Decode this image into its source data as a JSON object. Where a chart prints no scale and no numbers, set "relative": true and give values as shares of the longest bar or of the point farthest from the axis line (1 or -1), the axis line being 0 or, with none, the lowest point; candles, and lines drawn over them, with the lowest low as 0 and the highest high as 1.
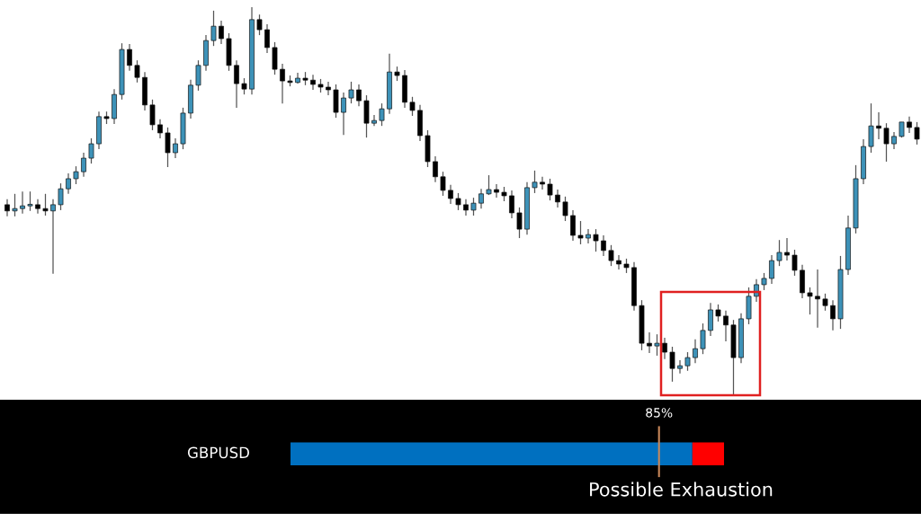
{
  "chart_data": [
    {
      "type": "candlestick",
      "relative": true,
      "categories": [
        null,
        null,
        null,
        null,
        null,
        null,
        null,
        null,
        null,
        null,
        null,
        null,
        null,
        null,
        null,
        null,
        null,
        null,
        null,
        null,
        null,
        null,
        null,
        null,
        null,
        null,
        null,
        null,
        null,
        null,
        null,
        null,
        null,
        null,
        null,
        null,
        null,
        null,
        null,
        null,
        null,
        null,
        null,
        null,
        null,
        null,
        null,
        null,
        null,
        null,
        null,
        null,
        null,
        null,
        null,
        null,
        null,
        null,
        null,
        null,
        null,
        null,
        null,
        null,
        null,
        null,
        null,
        null,
        null,
        null,
        null,
        null,
        null,
        null,
        null,
        null,
        null,
        null,
        null,
        null,
        null,
        null,
        null,
        null,
        null,
        null,
        null,
        null,
        null,
        null,
        null,
        null,
        null,
        null,
        null,
        null,
        null,
        null,
        null,
        null,
        null,
        null,
        null,
        null,
        null,
        null,
        null,
        null,
        null,
        null,
        null,
        null,
        null,
        null,
        null,
        null,
        null,
        null,
        null,
        null
      ],
      "ohlc": [
        [
          0.491,
          0.505,
          0.461,
          0.475
        ],
        [
          0.475,
          0.519,
          0.461,
          0.481
        ],
        [
          0.481,
          0.525,
          0.468,
          0.488
        ],
        [
          0.488,
          0.525,
          0.475,
          0.491
        ],
        [
          0.491,
          0.505,
          0.468,
          0.481
        ],
        [
          0.481,
          0.519,
          0.463,
          0.475
        ],
        [
          0.475,
          0.505,
          0.313,
          0.491
        ],
        [
          0.491,
          0.546,
          0.477,
          0.532
        ],
        [
          0.532,
          0.572,
          0.519,
          0.558
        ],
        [
          0.558,
          0.59,
          0.544,
          0.576
        ],
        [
          0.576,
          0.625,
          0.563,
          0.611
        ],
        [
          0.611,
          0.662,
          0.597,
          0.648
        ],
        [
          0.648,
          0.731,
          0.634,
          0.718
        ],
        [
          0.718,
          0.731,
          0.699,
          0.713
        ],
        [
          0.713,
          0.789,
          0.699,
          0.775
        ],
        [
          0.775,
          0.907,
          0.762,
          0.891
        ],
        [
          0.891,
          0.905,
          0.836,
          0.85
        ],
        [
          0.85,
          0.863,
          0.806,
          0.819
        ],
        [
          0.819,
          0.833,
          0.734,
          0.748
        ],
        [
          0.748,
          0.762,
          0.683,
          0.697
        ],
        [
          0.697,
          0.711,
          0.662,
          0.676
        ],
        [
          0.676,
          0.69,
          0.588,
          0.625
        ],
        [
          0.625,
          0.662,
          0.611,
          0.648
        ],
        [
          0.648,
          0.741,
          0.634,
          0.727
        ],
        [
          0.727,
          0.813,
          0.713,
          0.799
        ],
        [
          0.799,
          0.863,
          0.785,
          0.85
        ],
        [
          0.85,
          0.928,
          0.836,
          0.914
        ],
        [
          0.914,
          0.991,
          0.9,
          0.951
        ],
        [
          0.951,
          0.965,
          0.905,
          0.919
        ],
        [
          0.919,
          0.933,
          0.836,
          0.85
        ],
        [
          0.85,
          0.863,
          0.741,
          0.803
        ],
        [
          0.803,
          0.817,
          0.775,
          0.789
        ],
        [
          0.789,
          1.0,
          0.775,
          0.968
        ],
        [
          0.968,
          0.981,
          0.928,
          0.942
        ],
        [
          0.942,
          0.956,
          0.882,
          0.896
        ],
        [
          0.896,
          0.91,
          0.826,
          0.84
        ],
        [
          0.84,
          0.854,
          0.752,
          0.81
        ],
        [
          0.81,
          0.824,
          0.796,
          0.806
        ],
        [
          0.806,
          0.831,
          0.803,
          0.817
        ],
        [
          0.817,
          0.833,
          0.799,
          0.812
        ],
        [
          0.812,
          0.826,
          0.787,
          0.801
        ],
        [
          0.801,
          0.815,
          0.78,
          0.794
        ],
        [
          0.794,
          0.808,
          0.773,
          0.787
        ],
        [
          0.787,
          0.801,
          0.715,
          0.729
        ],
        [
          0.729,
          0.78,
          0.671,
          0.766
        ],
        [
          0.766,
          0.808,
          0.752,
          0.787
        ],
        [
          0.787,
          0.801,
          0.745,
          0.759
        ],
        [
          0.759,
          0.773,
          0.664,
          0.701
        ],
        [
          0.701,
          0.722,
          0.694,
          0.708
        ],
        [
          0.708,
          0.752,
          0.694,
          0.738
        ],
        [
          0.738,
          0.88,
          0.725,
          0.833
        ],
        [
          0.833,
          0.847,
          0.81,
          0.824
        ],
        [
          0.824,
          0.838,
          0.741,
          0.755
        ],
        [
          0.755,
          0.769,
          0.72,
          0.734
        ],
        [
          0.734,
          0.748,
          0.655,
          0.669
        ],
        [
          0.669,
          0.683,
          0.588,
          0.602
        ],
        [
          0.602,
          0.616,
          0.549,
          0.563
        ],
        [
          0.563,
          0.576,
          0.514,
          0.528
        ],
        [
          0.528,
          0.542,
          0.493,
          0.507
        ],
        [
          0.507,
          0.521,
          0.477,
          0.491
        ],
        [
          0.491,
          0.505,
          0.463,
          0.477
        ],
        [
          0.477,
          0.509,
          0.463,
          0.495
        ],
        [
          0.495,
          0.532,
          0.481,
          0.519
        ],
        [
          0.519,
          0.567,
          0.516,
          0.53
        ],
        [
          0.53,
          0.544,
          0.509,
          0.523
        ],
        [
          0.523,
          0.537,
          0.5,
          0.514
        ],
        [
          0.514,
          0.528,
          0.456,
          0.47
        ],
        [
          0.47,
          0.484,
          0.405,
          0.428
        ],
        [
          0.428,
          0.549,
          0.414,
          0.535
        ],
        [
          0.535,
          0.579,
          0.521,
          0.549
        ],
        [
          0.549,
          0.563,
          0.53,
          0.544
        ],
        [
          0.544,
          0.558,
          0.502,
          0.516
        ],
        [
          0.516,
          0.53,
          0.484,
          0.498
        ],
        [
          0.498,
          0.512,
          0.449,
          0.463
        ],
        [
          0.463,
          0.477,
          0.398,
          0.412
        ],
        [
          0.412,
          0.449,
          0.389,
          0.405
        ],
        [
          0.405,
          0.428,
          0.391,
          0.414
        ],
        [
          0.414,
          0.428,
          0.37,
          0.398
        ],
        [
          0.398,
          0.412,
          0.359,
          0.373
        ],
        [
          0.373,
          0.387,
          0.333,
          0.347
        ],
        [
          0.347,
          0.361,
          0.324,
          0.338
        ],
        [
          0.338,
          0.352,
          0.315,
          0.329
        ],
        [
          0.329,
          0.343,
          0.218,
          0.231
        ],
        [
          0.231,
          0.245,
          0.116,
          0.134
        ],
        [
          0.134,
          0.162,
          0.109,
          0.127
        ],
        [
          0.127,
          0.157,
          0.102,
          0.134
        ],
        [
          0.134,
          0.148,
          0.093,
          0.111
        ],
        [
          0.111,
          0.125,
          0.035,
          0.069
        ],
        [
          0.069,
          0.09,
          0.056,
          0.076
        ],
        [
          0.076,
          0.111,
          0.063,
          0.097
        ],
        [
          0.097,
          0.144,
          0.083,
          0.12
        ],
        [
          0.12,
          0.185,
          0.106,
          0.167
        ],
        [
          0.167,
          0.238,
          0.153,
          0.22
        ],
        [
          0.22,
          0.234,
          0.19,
          0.204
        ],
        [
          0.204,
          0.218,
          0.139,
          0.181
        ],
        [
          0.181,
          0.194,
          0.0,
          0.097
        ],
        [
          0.097,
          0.211,
          0.083,
          0.197
        ],
        [
          0.197,
          0.278,
          0.183,
          0.255
        ],
        [
          0.255,
          0.299,
          0.241,
          0.285
        ],
        [
          0.285,
          0.315,
          0.271,
          0.301
        ],
        [
          0.301,
          0.361,
          0.287,
          0.347
        ],
        [
          0.347,
          0.4,
          0.333,
          0.368
        ],
        [
          0.368,
          0.405,
          0.347,
          0.361
        ],
        [
          0.361,
          0.375,
          0.308,
          0.322
        ],
        [
          0.322,
          0.336,
          0.25,
          0.264
        ],
        [
          0.264,
          0.278,
          0.208,
          0.255
        ],
        [
          0.255,
          0.324,
          0.174,
          0.248
        ],
        [
          0.248,
          0.262,
          0.218,
          0.231
        ],
        [
          0.231,
          0.245,
          0.167,
          0.197
        ],
        [
          0.197,
          0.359,
          0.171,
          0.324
        ],
        [
          0.324,
          0.463,
          0.31,
          0.431
        ],
        [
          0.431,
          0.593,
          0.417,
          0.558
        ],
        [
          0.558,
          0.66,
          0.544,
          0.641
        ],
        [
          0.641,
          0.752,
          0.625,
          0.694
        ],
        [
          0.694,
          0.729,
          0.66,
          0.688
        ],
        [
          0.688,
          0.701,
          0.602,
          0.648
        ],
        [
          0.648,
          0.678,
          0.634,
          0.667
        ],
        [
          0.667,
          0.704,
          0.664,
          0.704
        ],
        [
          0.704,
          0.718,
          0.676,
          0.69
        ],
        [
          0.69,
          0.704,
          0.646,
          0.66
        ]
      ],
      "colors": [
        "#000000",
        "#3d92b8",
        "#3d92b8",
        "#3d92b8",
        "#000000",
        "#000000",
        "#3d92b8",
        "#3d92b8",
        "#3d92b8",
        "#3d92b8",
        "#3d92b8",
        "#3d92b8",
        "#3d92b8",
        "#000000",
        "#3d92b8",
        "#3d92b8",
        "#000000",
        "#000000",
        "#000000",
        "#000000",
        "#000000",
        "#000000",
        "#3d92b8",
        "#3d92b8",
        "#3d92b8",
        "#3d92b8",
        "#3d92b8",
        "#3d92b8",
        "#000000",
        "#000000",
        "#000000",
        "#000000",
        "#3d92b8",
        "#000000",
        "#000000",
        "#000000",
        "#000000",
        "#000000",
        "#3d92b8",
        "#000000",
        "#000000",
        "#000000",
        "#000000",
        "#000000",
        "#3d92b8",
        "#3d92b8",
        "#000000",
        "#000000",
        "#3d92b8",
        "#3d92b8",
        "#3d92b8",
        "#000000",
        "#000000",
        "#000000",
        "#000000",
        "#000000",
        "#000000",
        "#000000",
        "#000000",
        "#000000",
        "#000000",
        "#3d92b8",
        "#3d92b8",
        "#3d92b8",
        "#000000",
        "#000000",
        "#000000",
        "#000000",
        "#3d92b8",
        "#3d92b8",
        "#000000",
        "#000000",
        "#000000",
        "#000000",
        "#000000",
        "#000000",
        "#3d92b8",
        "#000000",
        "#000000",
        "#000000",
        "#000000",
        "#000000",
        "#000000",
        "#000000",
        "#000000",
        "#3d92b8",
        "#000000",
        "#000000",
        "#3d92b8",
        "#3d92b8",
        "#3d92b8",
        "#3d92b8",
        "#3d92b8",
        "#000000",
        "#000000",
        "#000000",
        "#3d92b8",
        "#3d92b8",
        "#3d92b8",
        "#3d92b8",
        "#3d92b8",
        "#3d92b8",
        "#000000",
        "#000000",
        "#000000",
        "#000000",
        "#000000",
        "#000000",
        "#000000",
        "#3d92b8",
        "#3d92b8",
        "#3d92b8",
        "#3d92b8",
        "#3d92b8",
        "#000000",
        "#000000",
        "#3d92b8",
        "#3d92b8",
        "#000000",
        "#000000"
      ],
      "grid": false,
      "legend": false
    },
    {
      "type": "bar",
      "orientation": "horizontal",
      "stacked": true,
      "relative": true,
      "categories": [
        "GBPUSD"
      ],
      "series": [
        {
          "color": "#0070c0",
          "values": [
            0.927
          ]
        },
        {
          "color": "#ff0000",
          "values": [
            0.073
          ]
        }
      ],
      "ref_lines": [
        {
          "axis": "x",
          "value": 0.85,
          "label": "85%",
          "color": "#c8875a"
        }
      ],
      "annotations": [
        "Possible Exhaustion"
      ],
      "grid": false,
      "legend": false
    }
  ]
}
